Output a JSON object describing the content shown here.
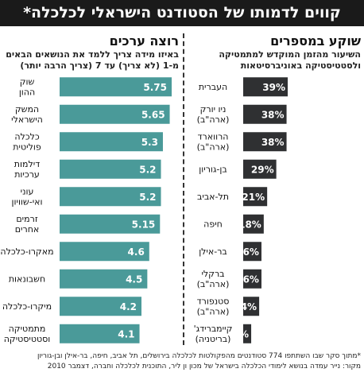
{
  "header": {
    "title": "קווים לדמותו של הסטודנט הישראלי לכלכלה*"
  },
  "left_panel": {
    "title": "רוצה ערכים",
    "subtitle_1": "באיזו מידה צריך ללמד את הנושאים הבאים",
    "subtitle_2": "מ-1 (לא צריך) עד 7 (צריך הרבה יותר)"
  },
  "right_panel": {
    "title": "שוקע במספרים",
    "subtitle_1": "השיעור מהזמן המוקדש למתמטיקה",
    "subtitle_2": "ולסטטיסטיקה באוניברסיטאות"
  },
  "footnote": {
    "line1": "*מתוך סקר שבו השתתפו 774 סטודנטים מהפקולטות לכלכלה בירושלים, תל אביב, חיפה, בר-אילן ובן-גוריון",
    "line2": "מקור: נייר עמדה בנושא לימודי הכלכלה בישראל של מכון ון ליר, התוכנית לכלכלה וחברה, דצמבר 2010"
  },
  "colors": {
    "left_bar": "#4a9a99",
    "right_bar": "#2f3032",
    "banner": "#1a1a1a"
  },
  "chart_data": [
    {
      "type": "bar",
      "title": "רוצה ערכים",
      "categories": [
        "שוק ההון",
        "המשק הישראלי",
        "כלכלה פוליטית",
        "דילמות ערכיות",
        "עוני ואי-שוויון",
        "זרמים אחרים",
        "מאקרו-כלכלה",
        "חשבונאות",
        "מיקרו-כלכלה",
        "מתמטיקה וסטטיסטיקה"
      ],
      "values": [
        5.75,
        5.65,
        5.3,
        5.2,
        5.2,
        5.15,
        4.6,
        4.5,
        4.2,
        4.1
      ],
      "value_labels": [
        "5.75",
        "5.65",
        "5.3",
        "5.2",
        "5.2",
        "5.15",
        "4.6",
        "4.5",
        "4.2",
        "4.1"
      ],
      "orientation": "horizontal",
      "xlim": [
        0,
        7
      ]
    },
    {
      "type": "bar",
      "title": "שוקע במספרים",
      "categories": [
        "העברית",
        "ניו יורק (ארה\"ב)",
        "הרווארד (ארה\"ב)",
        "בן-גוריון",
        "תל-אביב",
        "חיפה",
        "בר-אילן",
        "ברקלי (ארה\"ב)",
        "סטנפורד (ארה\"ב)",
        "קיימברידג' (בריטניה)"
      ],
      "values": [
        39,
        38,
        38,
        29,
        21,
        18,
        16,
        16,
        14,
        7
      ],
      "value_labels": [
        "39%",
        "38%",
        "38%",
        "29%",
        "21%",
        "18%",
        "16%",
        "16%",
        "14%",
        "7%"
      ],
      "orientation": "horizontal",
      "unit": "%"
    }
  ]
}
